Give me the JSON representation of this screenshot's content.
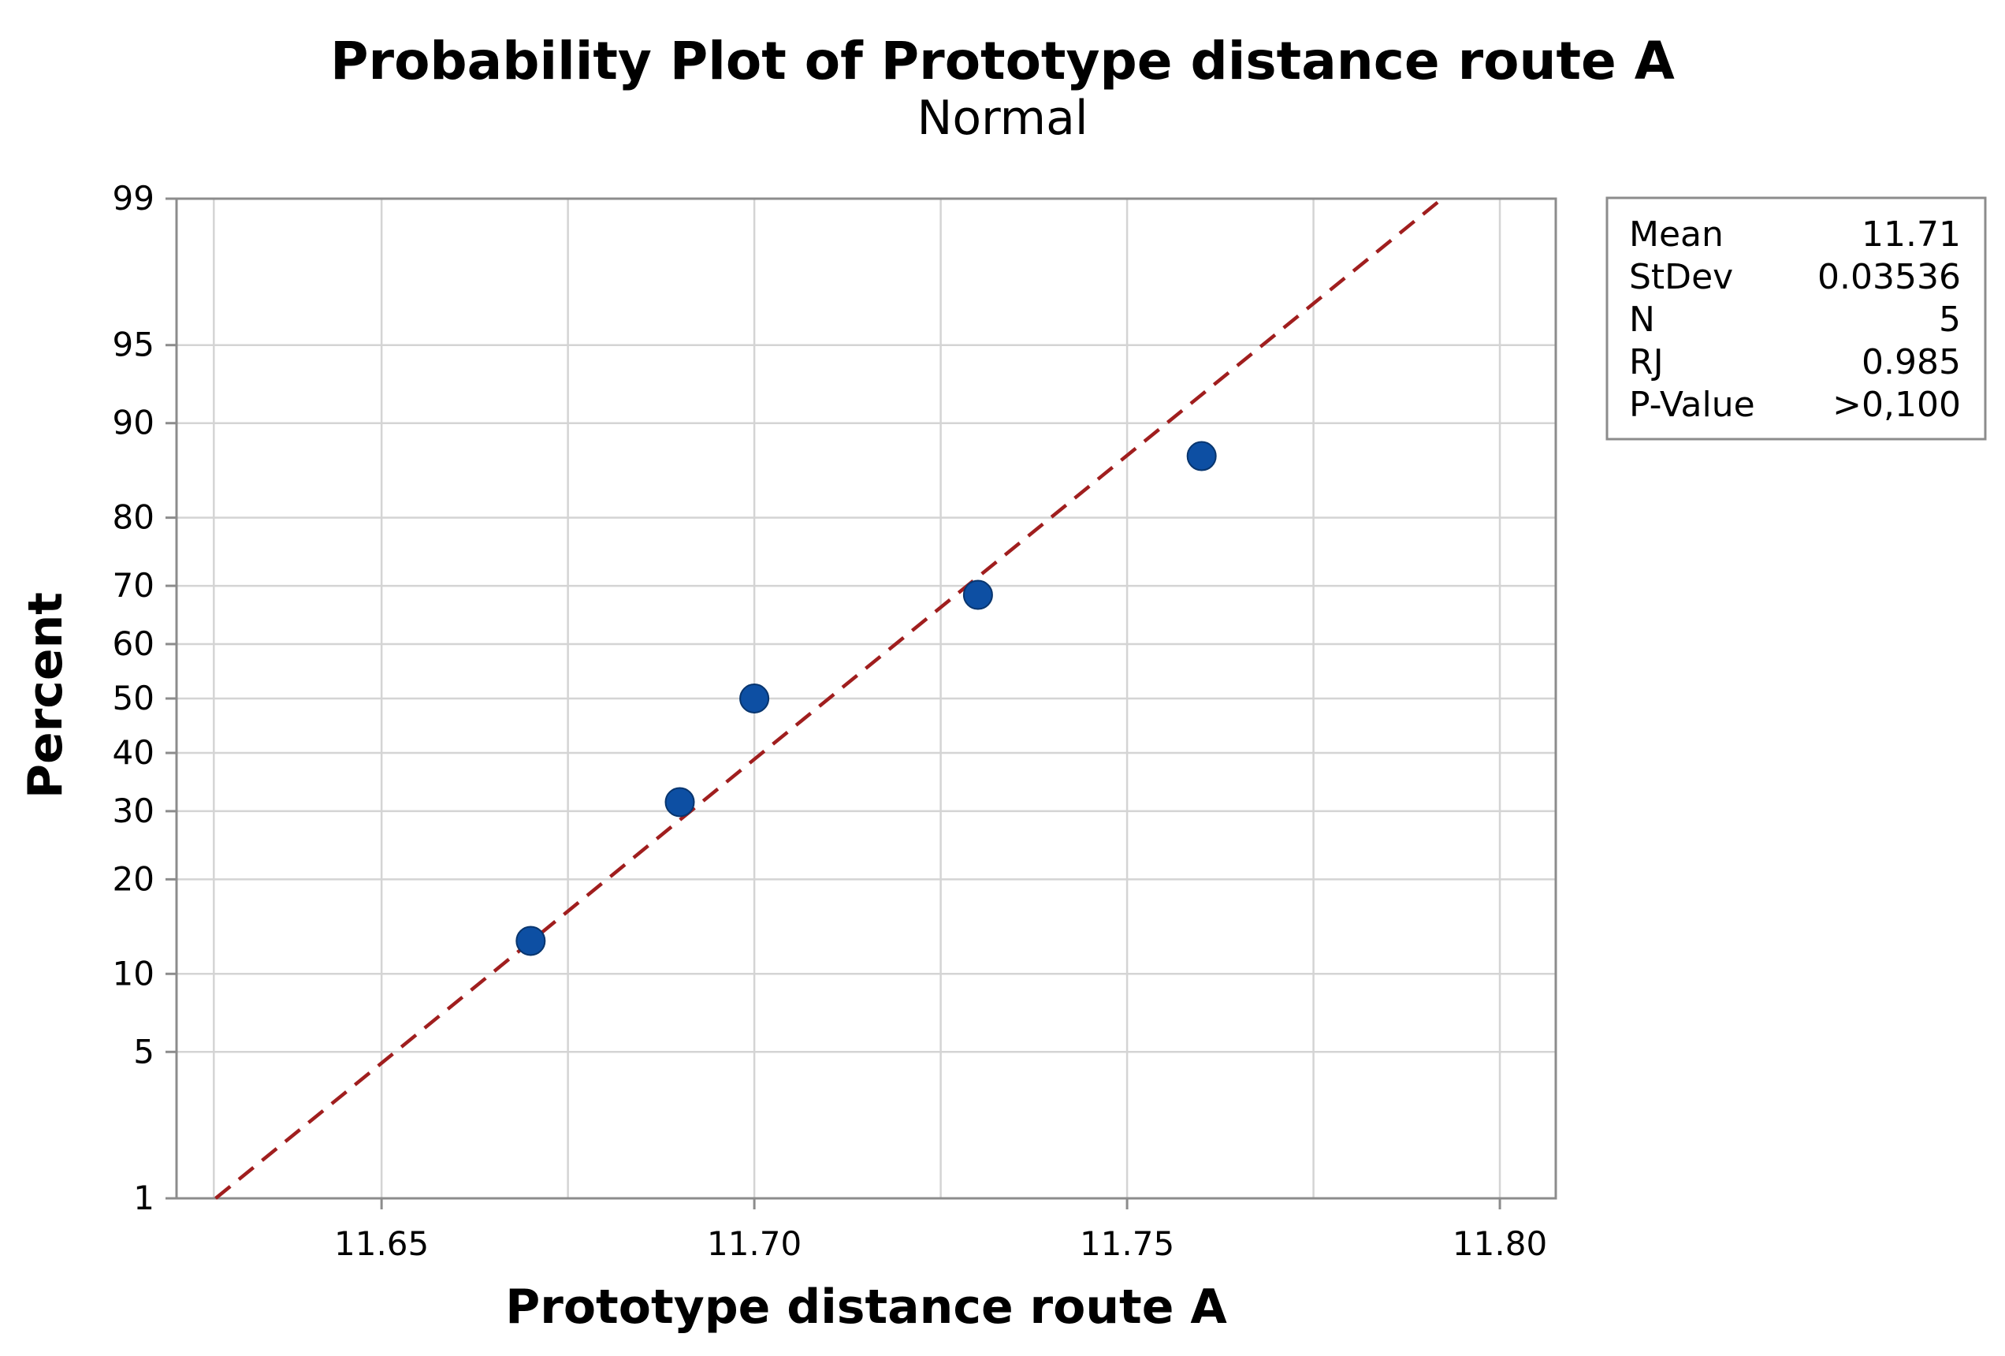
{
  "chart_data": {
    "type": "scatter",
    "subtype": "normal-probability-plot",
    "title": "Probability Plot of Prototype distance route A",
    "subtitle": "Normal",
    "xlabel": "Prototype distance route A",
    "ylabel": "Percent",
    "xlim": [
      11.6225,
      11.8075
    ],
    "ylim": [
      1,
      99
    ],
    "yscale": "normal-probability",
    "x_ticks": [
      {
        "value": 11.65,
        "label": "11.65"
      },
      {
        "value": 11.7,
        "label": "11.70"
      },
      {
        "value": 11.75,
        "label": "11.75"
      },
      {
        "value": 11.8,
        "label": "11.80"
      }
    ],
    "x_gridlines": [
      11.6275,
      11.65,
      11.675,
      11.7,
      11.725,
      11.75,
      11.775,
      11.8
    ],
    "y_ticks": [
      {
        "value": 1,
        "label": "1"
      },
      {
        "value": 5,
        "label": "5"
      },
      {
        "value": 10,
        "label": "10"
      },
      {
        "value": 20,
        "label": "20"
      },
      {
        "value": 30,
        "label": "30"
      },
      {
        "value": 40,
        "label": "40"
      },
      {
        "value": 50,
        "label": "50"
      },
      {
        "value": 60,
        "label": "60"
      },
      {
        "value": 70,
        "label": "70"
      },
      {
        "value": 80,
        "label": "80"
      },
      {
        "value": 90,
        "label": "90"
      },
      {
        "value": 95,
        "label": "95"
      },
      {
        "value": 99,
        "label": "99"
      }
    ],
    "grid": true,
    "points": [
      {
        "x": 11.67,
        "y": 12.96
      },
      {
        "x": 11.69,
        "y": 31.48
      },
      {
        "x": 11.7,
        "y": 50.0
      },
      {
        "x": 11.73,
        "y": 68.52
      },
      {
        "x": 11.76,
        "y": 87.04
      }
    ],
    "fit_line": {
      "mean": 11.71,
      "stdev": 0.03536,
      "style": "dashed"
    },
    "stats_box": {
      "position": "right",
      "rows": [
        {
          "label": "Mean",
          "value": "11.71"
        },
        {
          "label": "StDev",
          "value": "0.03536"
        },
        {
          "label": "N",
          "value": "5"
        },
        {
          "label": "RJ",
          "value": "0.985"
        },
        {
          "label": "P-Value",
          "value": ">0,100"
        }
      ]
    },
    "colors": {
      "points": "#0d4fa3",
      "fit_line": "#a01e1e",
      "grid": "#d4d4d4",
      "frame": "#8c8c8c"
    }
  }
}
